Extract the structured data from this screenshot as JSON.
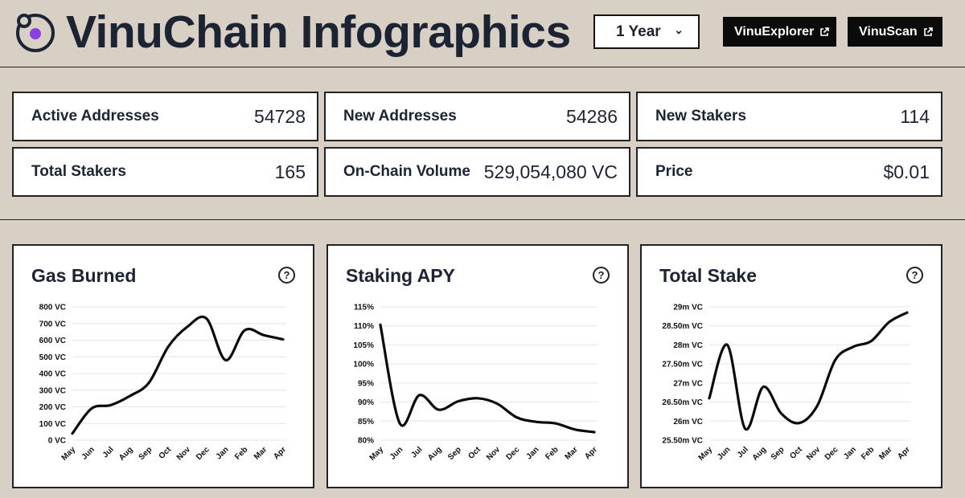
{
  "header": {
    "title": "VinuChain Infographics",
    "period_select": "1 Year",
    "explorer_label": "VinuExplorer",
    "scan_label": "VinuScan",
    "logo_accent_color": "#8b3fe0"
  },
  "stats": [
    {
      "label": "Active Addresses",
      "value": "54728"
    },
    {
      "label": "New Addresses",
      "value": "54286"
    },
    {
      "label": "New Stakers",
      "value": "114"
    },
    {
      "label": "Total Stakers",
      "value": "165"
    },
    {
      "label": "On-Chain Volume",
      "value": "529,054,080 VC"
    },
    {
      "label": "Price",
      "value": "$0.01"
    }
  ],
  "chart_data": [
    {
      "type": "line",
      "title": "Gas Burned",
      "x": [
        "May",
        "Jun",
        "Jul",
        "Aug",
        "Sep",
        "Oct",
        "Nov",
        "Dec",
        "Jan",
        "Feb",
        "Mar",
        "Apr"
      ],
      "y_ticks": [
        "0 VC",
        "100 VC",
        "200 VC",
        "300 VC",
        "400 VC",
        "500 VC",
        "600 VC",
        "700 VC",
        "800 VC"
      ],
      "ylim": [
        0,
        800
      ],
      "series": [
        {
          "values": [
            40,
            190,
            210,
            265,
            345,
            560,
            680,
            730,
            480,
            660,
            630,
            605
          ]
        }
      ]
    },
    {
      "type": "line",
      "title": "Staking APY",
      "x": [
        "May",
        "Jun",
        "Jul",
        "Aug",
        "Sep",
        "Oct",
        "Nov",
        "Dec",
        "Jan",
        "Feb",
        "Mar",
        "Apr"
      ],
      "y_ticks": [
        "80%",
        "85%",
        "90%",
        "95%",
        "100%",
        "105%",
        "110%",
        "115%"
      ],
      "ylim": [
        80,
        115
      ],
      "series": [
        {
          "values": [
            110.3,
            84.4,
            91.8,
            88.0,
            90.2,
            91.0,
            89.6,
            86.0,
            84.8,
            84.4,
            82.8,
            82.1
          ]
        }
      ]
    },
    {
      "type": "line",
      "title": "Total Stake",
      "x": [
        "May",
        "Jun",
        "Jul",
        "Aug",
        "Sep",
        "Oct",
        "Nov",
        "Dec",
        "Jan",
        "Feb",
        "Mar",
        "Apr"
      ],
      "y_ticks": [
        "25.50m VC",
        "26m VC",
        "26.50m VC",
        "27m VC",
        "27.50m VC",
        "28m VC",
        "28.50m VC",
        "29m VC"
      ],
      "ylim": [
        25.5,
        29
      ],
      "series": [
        {
          "values": [
            26.6,
            28.0,
            25.8,
            26.9,
            26.2,
            25.95,
            26.4,
            27.6,
            27.95,
            28.1,
            28.6,
            28.85
          ]
        }
      ]
    }
  ]
}
